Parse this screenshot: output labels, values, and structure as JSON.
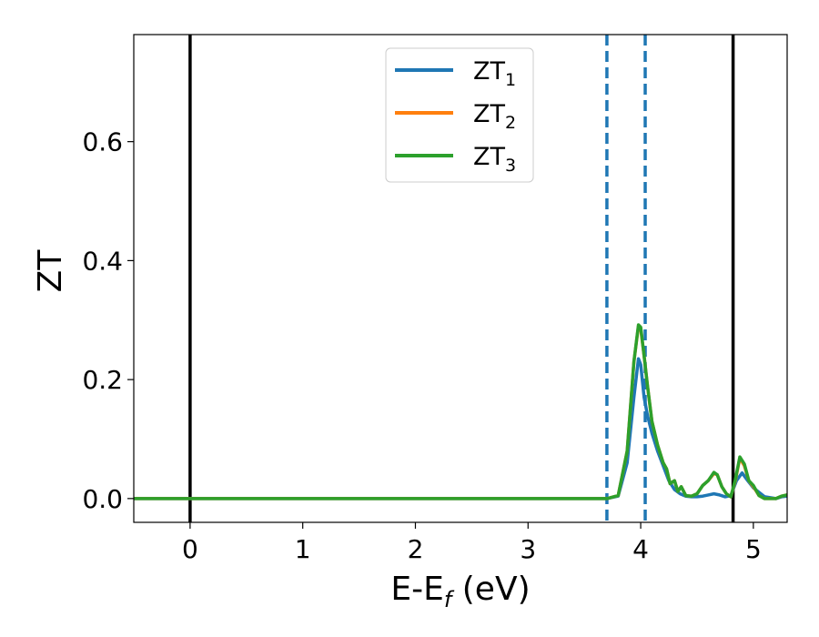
{
  "chart_data": {
    "type": "line",
    "xlabel": "E-E",
    "xlabel_sub": "f",
    "xlabel_unit": " (eV)",
    "ylabel": "ZT",
    "xlim": [
      -0.5,
      5.3
    ],
    "ylim": [
      -0.04,
      0.78
    ],
    "xticks": [
      0,
      1,
      2,
      3,
      4,
      5
    ],
    "xtick_labels": [
      "0",
      "1",
      "2",
      "3",
      "4",
      "5"
    ],
    "yticks": [
      0.0,
      0.2,
      0.4,
      0.6
    ],
    "ytick_labels": [
      "0.0",
      "0.2",
      "0.4",
      "0.6"
    ],
    "grid": false,
    "legend_placement": "upper-center",
    "vertical_lines": [
      {
        "x": 0.0,
        "style": "solid",
        "color": "#000000"
      },
      {
        "x": 4.82,
        "style": "solid",
        "color": "#000000"
      },
      {
        "x": 3.7,
        "style": "dashed",
        "color": "#1f77b4"
      },
      {
        "x": 4.04,
        "style": "dashed",
        "color": "#1f77b4"
      }
    ],
    "series": [
      {
        "name": "ZT",
        "name_sub": "1",
        "color": "#1f77b4",
        "x": [
          -0.5,
          3.7,
          3.8,
          3.88,
          3.94,
          3.98,
          4.0,
          4.03,
          4.06,
          4.1,
          4.15,
          4.2,
          4.25,
          4.3,
          4.35,
          4.4,
          4.45,
          4.5,
          4.55,
          4.6,
          4.65,
          4.7,
          4.75,
          4.8,
          4.85,
          4.9,
          4.95,
          5.0,
          5.1,
          5.2,
          5.25,
          5.3
        ],
        "y": [
          0.0,
          0.0,
          0.004,
          0.06,
          0.17,
          0.235,
          0.225,
          0.17,
          0.14,
          0.11,
          0.08,
          0.055,
          0.03,
          0.015,
          0.008,
          0.004,
          0.003,
          0.003,
          0.004,
          0.006,
          0.008,
          0.006,
          0.003,
          0.005,
          0.03,
          0.043,
          0.03,
          0.018,
          0.003,
          0.0,
          0.003,
          0.004
        ]
      },
      {
        "name": "ZT",
        "name_sub": "2",
        "color": "#ff7f0e",
        "x": [
          -0.5,
          3.7,
          3.8,
          3.88,
          3.94,
          3.98,
          4.0,
          4.03,
          4.06,
          4.1,
          4.15,
          4.2,
          4.23,
          4.26,
          4.3,
          4.33,
          4.36,
          4.4,
          4.45,
          4.5,
          4.55,
          4.6,
          4.65,
          4.68,
          4.72,
          4.76,
          4.8,
          4.84,
          4.88,
          4.92,
          4.96,
          5.0,
          5.05,
          5.1,
          5.2,
          5.25,
          5.3
        ],
        "y": [
          0.0,
          0.0,
          0.005,
          0.08,
          0.23,
          0.29,
          0.285,
          0.24,
          0.19,
          0.13,
          0.09,
          0.06,
          0.05,
          0.025,
          0.03,
          0.012,
          0.02,
          0.005,
          0.004,
          0.008,
          0.022,
          0.03,
          0.042,
          0.04,
          0.02,
          0.008,
          0.003,
          0.03,
          0.068,
          0.055,
          0.03,
          0.02,
          0.005,
          0.0,
          0.0,
          0.004,
          0.006
        ]
      },
      {
        "name": "ZT",
        "name_sub": "3",
        "color": "#2ca02c",
        "x": [
          -0.5,
          3.7,
          3.8,
          3.88,
          3.94,
          3.98,
          4.0,
          4.03,
          4.06,
          4.1,
          4.15,
          4.2,
          4.23,
          4.26,
          4.3,
          4.33,
          4.36,
          4.4,
          4.45,
          4.5,
          4.55,
          4.6,
          4.65,
          4.68,
          4.72,
          4.76,
          4.8,
          4.84,
          4.88,
          4.92,
          4.96,
          5.0,
          5.05,
          5.1,
          5.2,
          5.25,
          5.3
        ],
        "y": [
          0.0,
          0.0,
          0.005,
          0.08,
          0.23,
          0.292,
          0.288,
          0.24,
          0.19,
          0.13,
          0.09,
          0.06,
          0.05,
          0.025,
          0.03,
          0.012,
          0.02,
          0.005,
          0.004,
          0.008,
          0.022,
          0.03,
          0.044,
          0.04,
          0.02,
          0.008,
          0.003,
          0.032,
          0.07,
          0.058,
          0.03,
          0.022,
          0.005,
          0.0,
          0.0,
          0.004,
          0.006
        ]
      }
    ]
  }
}
